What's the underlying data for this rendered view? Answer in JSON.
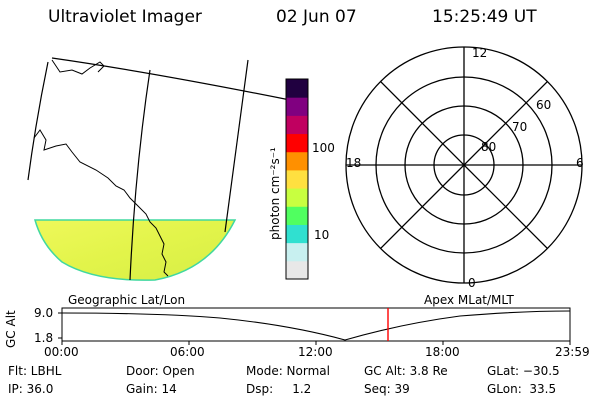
{
  "header": {
    "title": "Ultraviolet Imager",
    "date": "02 Jun 07",
    "time": "15:25:49 UT"
  },
  "colorbar": {
    "unit_label": "photon cm⁻²s⁻¹",
    "tick_100": "100",
    "tick_10": "10",
    "colors": [
      "#e8e8e8",
      "#c8f0f0",
      "#30e0d0",
      "#50ff60",
      "#c8ff40",
      "#ffe040",
      "#ff9000",
      "#ff0000",
      "#c00060",
      "#800080",
      "#200040"
    ]
  },
  "polar": {
    "lat_labels": [
      "80",
      "70",
      "60"
    ],
    "mlt_labels": {
      "top": "12",
      "bottom": "0",
      "left": "18",
      "right": "6"
    }
  },
  "geo_label": "Geographic Lat/Lon",
  "apex_label": "Apex MLat/MLT",
  "alt_plot": {
    "ylabel": "GC Alt",
    "ytick_top": "9.0",
    "ytick_bottom": "1.8",
    "xticks": [
      "00:00",
      "06:00",
      "12:00",
      "18:00",
      "23:59"
    ],
    "marker_color": "#ff0000"
  },
  "status": {
    "flt": "Flt: LBHL",
    "door": "Door: Open",
    "mode": "Mode: Normal",
    "gcalt": "GC Alt: 3.8 Re",
    "glat": "GLat: −30.5",
    "ip": "IP: 36.0",
    "gain": "Gain: 14",
    "dsp": "Dsp:     1.2",
    "seq": "Seq: 39",
    "glon": "GLon:  33.5"
  }
}
